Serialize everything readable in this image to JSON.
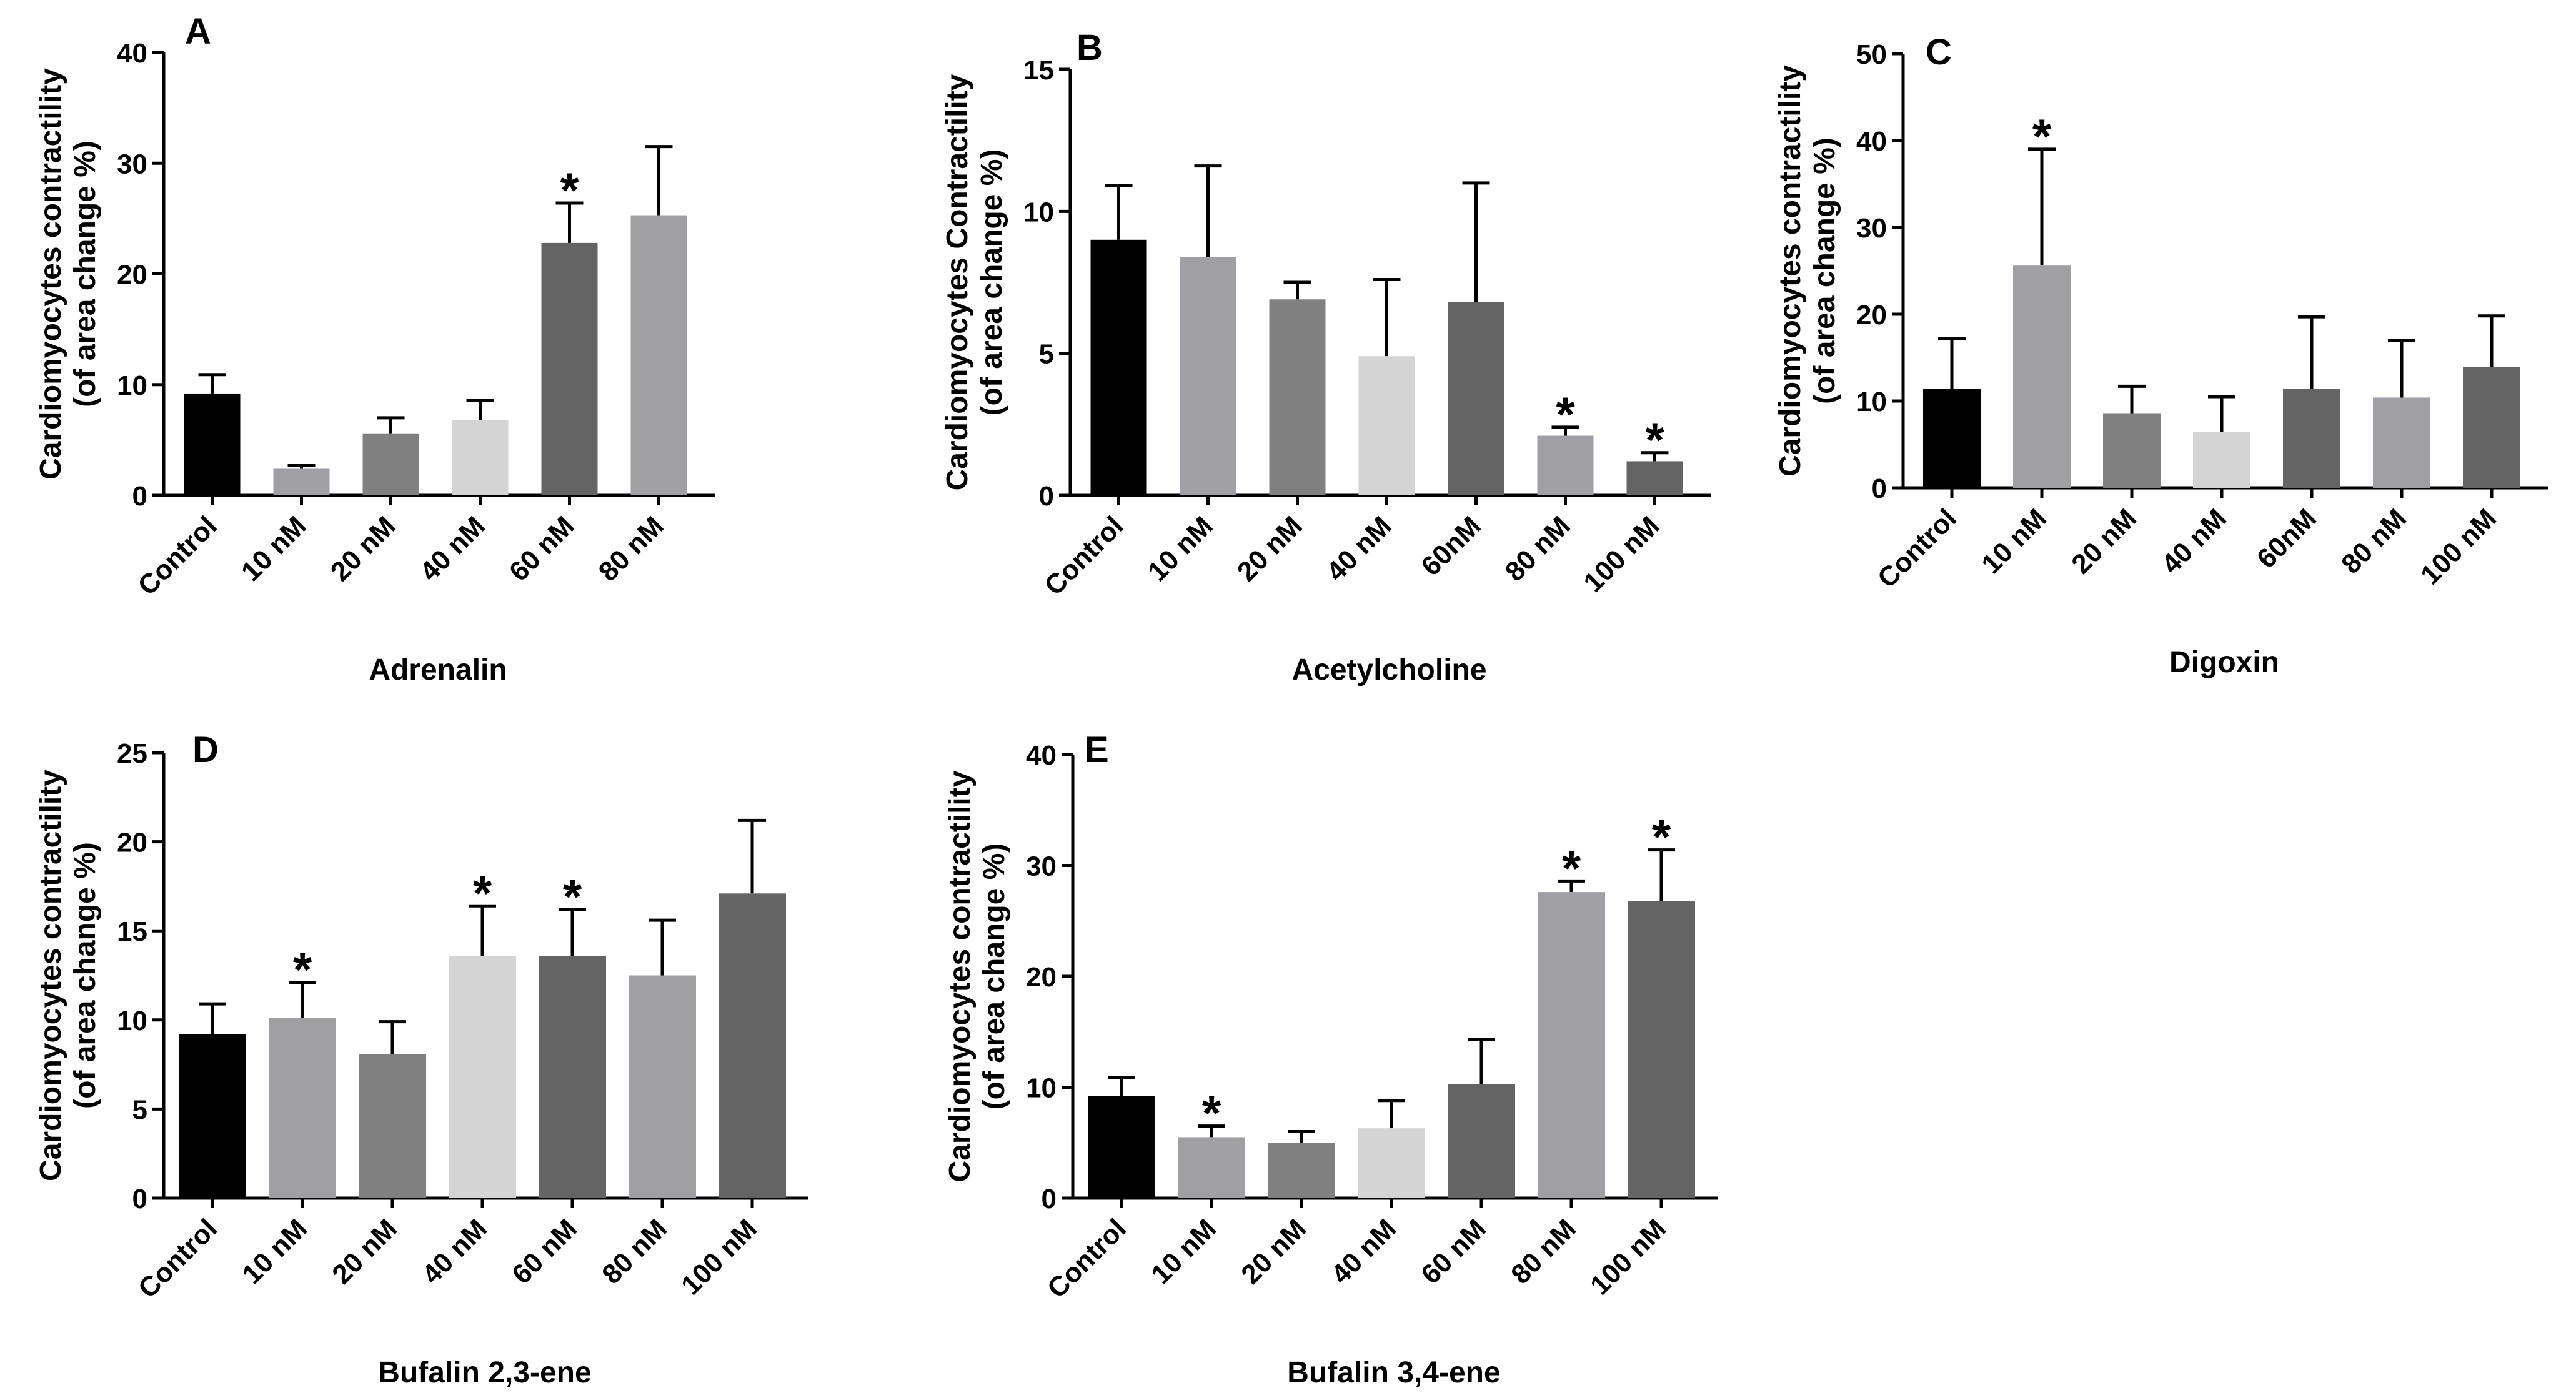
{
  "chart_data": [
    {
      "type": "bar",
      "panel": "A",
      "xlabel": "Adrenalin",
      "ylabel_lines": [
        "Cardiomyocytes contractility",
        "(of area change %)"
      ],
      "ylim": [
        0,
        40
      ],
      "yticks": [
        0,
        10,
        20,
        30,
        40
      ],
      "categories": [
        "Control",
        "10 nM",
        "20 nM",
        "40 nM",
        "60 nM",
        "80 nM"
      ],
      "values": [
        9.2,
        2.4,
        5.6,
        6.8,
        22.8,
        25.3
      ],
      "errors": [
        1.7,
        0.3,
        1.4,
        1.8,
        3.6,
        6.2
      ],
      "significant": [
        false,
        false,
        false,
        false,
        true,
        false
      ],
      "colors": [
        "#000000",
        "#a0a0a4",
        "#808080",
        "#d4d4d4",
        "#646464",
        "#a0a0a4"
      ],
      "annotation": "*"
    },
    {
      "type": "bar",
      "panel": "B",
      "xlabel": "Acetylcholine",
      "ylabel_lines": [
        "Cardiomyocytes Contractility",
        "(of area change %)"
      ],
      "ylim": [
        0,
        15
      ],
      "yticks": [
        0,
        5,
        10,
        15
      ],
      "categories": [
        "Control",
        "10 nM",
        "20 nM",
        "40 nM",
        "60nM",
        "80 nM",
        "100 nM"
      ],
      "values": [
        9.0,
        8.4,
        6.9,
        4.9,
        6.8,
        2.1,
        1.2
      ],
      "errors": [
        1.9,
        3.2,
        0.6,
        2.7,
        4.2,
        0.3,
        0.3
      ],
      "significant": [
        false,
        false,
        false,
        false,
        false,
        true,
        true
      ],
      "colors": [
        "#000000",
        "#a0a0a4",
        "#808080",
        "#d4d4d4",
        "#646464",
        "#a0a0a4",
        "#646464"
      ],
      "annotation": "*"
    },
    {
      "type": "bar",
      "panel": "C",
      "xlabel": "Digoxin",
      "ylabel_lines": [
        "Cardiomyocytes contractility",
        "(of area change %)"
      ],
      "ylim": [
        0,
        50
      ],
      "yticks": [
        0,
        10,
        20,
        30,
        40,
        50
      ],
      "categories": [
        "Control",
        "10 nM",
        "20 nM",
        "40 nM",
        "60nM",
        "80 nM",
        "100 nM"
      ],
      "values": [
        11.4,
        25.6,
        8.6,
        6.4,
        11.4,
        10.4,
        13.9
      ],
      "errors": [
        5.8,
        13.4,
        3.1,
        4.1,
        8.3,
        6.6,
        5.9
      ],
      "significant": [
        false,
        true,
        false,
        false,
        false,
        false,
        false
      ],
      "colors": [
        "#000000",
        "#a0a0a4",
        "#808080",
        "#d4d4d4",
        "#646464",
        "#a0a0a4",
        "#646464"
      ],
      "annotation": "*"
    },
    {
      "type": "bar",
      "panel": "D",
      "xlabel": "Bufalin 2,3-ene",
      "ylabel_lines": [
        "Cardiomyocytes contractility",
        "(of area change %)"
      ],
      "ylim": [
        0,
        25
      ],
      "yticks": [
        0,
        5,
        10,
        15,
        20,
        25
      ],
      "categories": [
        "Control",
        "10 nM",
        "20 nM",
        "40 nM",
        "60 nM",
        "80 nM",
        "100 nM"
      ],
      "values": [
        9.2,
        10.1,
        8.1,
        13.6,
        13.6,
        12.5,
        17.1
      ],
      "errors": [
        1.7,
        2.0,
        1.8,
        2.8,
        2.6,
        3.1,
        4.1
      ],
      "significant": [
        false,
        true,
        false,
        true,
        true,
        false,
        false
      ],
      "colors": [
        "#000000",
        "#a0a0a4",
        "#808080",
        "#d4d4d4",
        "#646464",
        "#a0a0a4",
        "#646464"
      ],
      "annotation": "*"
    },
    {
      "type": "bar",
      "panel": "E",
      "xlabel": "Bufalin 3,4-ene",
      "ylabel_lines": [
        "Cardiomyocytes contractility",
        "(of area change %)"
      ],
      "ylim": [
        0,
        40
      ],
      "yticks": [
        0,
        10,
        20,
        30,
        40
      ],
      "categories": [
        "Control",
        "10 nM",
        "20 nM",
        "40 nM",
        "60 nM",
        "80 nM",
        "100 nM"
      ],
      "values": [
        9.2,
        5.5,
        5.0,
        6.3,
        10.3,
        27.6,
        26.8
      ],
      "errors": [
        1.7,
        1.0,
        1.0,
        2.5,
        4.0,
        1.0,
        4.6
      ],
      "significant": [
        false,
        true,
        false,
        false,
        false,
        true,
        true
      ],
      "colors": [
        "#000000",
        "#a0a0a4",
        "#808080",
        "#d4d4d4",
        "#646464",
        "#a0a0a4",
        "#646464"
      ],
      "annotation": "*"
    }
  ]
}
